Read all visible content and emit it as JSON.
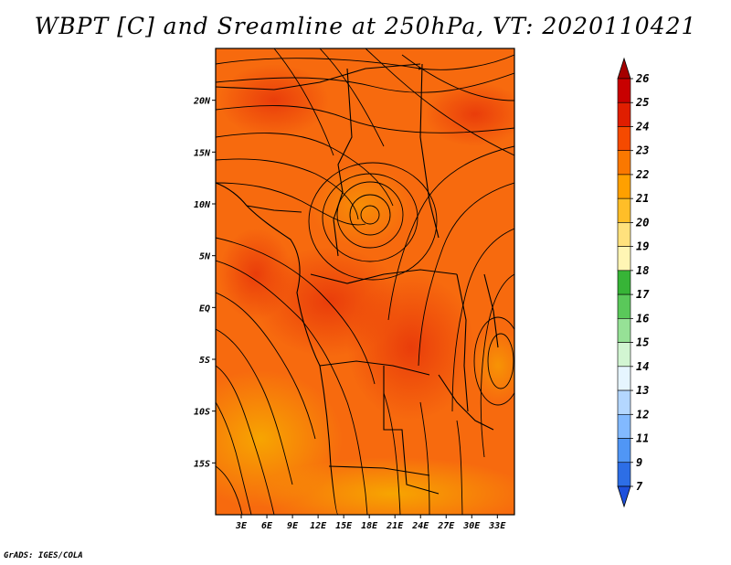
{
  "title": "WBPT [C] and Sreamline at 250hPa, VT: 2020110421",
  "credit": "GrADS: IGES/COLA",
  "map": {
    "lon_range": [
      0,
      35
    ],
    "lat_range": [
      -20,
      25
    ],
    "lat_ticks": [
      {
        "value": 20,
        "label": "20N"
      },
      {
        "value": 15,
        "label": "15N"
      },
      {
        "value": 10,
        "label": "10N"
      },
      {
        "value": 5,
        "label": "5N"
      },
      {
        "value": 0,
        "label": "EQ"
      },
      {
        "value": -5,
        "label": "5S"
      },
      {
        "value": -10,
        "label": "10S"
      },
      {
        "value": -15,
        "label": "15S"
      }
    ],
    "lon_ticks": [
      {
        "value": 3,
        "label": "3E"
      },
      {
        "value": 6,
        "label": "6E"
      },
      {
        "value": 9,
        "label": "9E"
      },
      {
        "value": 12,
        "label": "12E"
      },
      {
        "value": 15,
        "label": "15E"
      },
      {
        "value": 18,
        "label": "18E"
      },
      {
        "value": 21,
        "label": "21E"
      },
      {
        "value": 24,
        "label": "24E"
      },
      {
        "value": 27,
        "label": "27E"
      },
      {
        "value": 30,
        "label": "30E"
      },
      {
        "value": 33,
        "label": "33E"
      }
    ]
  },
  "colorbar": {
    "levels": [
      "26",
      "25",
      "24",
      "23",
      "22",
      "21",
      "20",
      "19",
      "18",
      "17",
      "16",
      "15",
      "14",
      "13",
      "12",
      "11",
      "9",
      "7"
    ],
    "colors": [
      "#a50000",
      "#c80000",
      "#e01e00",
      "#f54a00",
      "#fa7800",
      "#ffa000",
      "#ffbe28",
      "#ffe17d",
      "#fff5b4",
      "#37b437",
      "#5ac85a",
      "#96e196",
      "#d2f5d2",
      "#e6f5ff",
      "#b4d7ff",
      "#82b9ff",
      "#5096f5",
      "#2d6ee6",
      "#1e50dc"
    ]
  }
}
